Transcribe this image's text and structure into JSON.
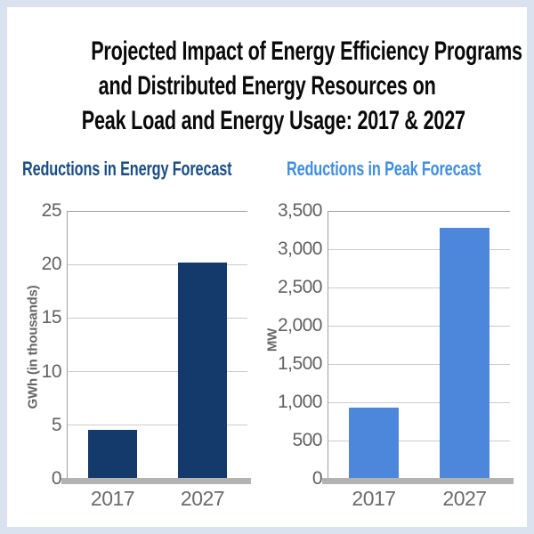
{
  "page": {
    "background": "#ffffff",
    "border_color": "#d9e2ee"
  },
  "header": {
    "title_lines": [
      "Projected Impact of Energy Efficiency Programs",
      "and Distributed Energy Resources on",
      "Peak Load and Energy Usage: 2017 & 2027"
    ],
    "title_color": "#0a0a0a"
  },
  "chart_data": [
    {
      "type": "bar",
      "title": "Reductions in Energy Forecast",
      "title_color": "#1a4e85",
      "bar_color": "#143a6b",
      "categories": [
        "2017",
        "2027"
      ],
      "values": [
        4.6,
        20.2
      ],
      "xlabel": "",
      "ylabel": "GWh (in thousands)",
      "ylim": [
        0,
        25
      ],
      "ytick_step": 5,
      "ytick_labels": [
        "0",
        "5",
        "10",
        "15",
        "20",
        "25"
      ],
      "grid": true,
      "legend": false,
      "gridline_color": "#cbcbcb",
      "baseline_color": "#b3b3b3",
      "tick_text_color": "#616161"
    },
    {
      "type": "bar",
      "title": "Reductions in Peak Forecast",
      "title_color": "#3f8edf",
      "bar_color": "#4c87db",
      "categories": [
        "2017",
        "2027"
      ],
      "values": [
        930,
        3280
      ],
      "xlabel": "",
      "ylabel": "MW",
      "ylim": [
        0,
        3500
      ],
      "ytick_step": 500,
      "ytick_labels": [
        "0",
        "500",
        "1,000",
        "1,500",
        "2,000",
        "2,500",
        "3,000",
        "3,500"
      ],
      "grid": true,
      "legend": false,
      "gridline_color": "#cbcbcb",
      "baseline_color": "#b3b3b3",
      "tick_text_color": "#616161"
    }
  ]
}
